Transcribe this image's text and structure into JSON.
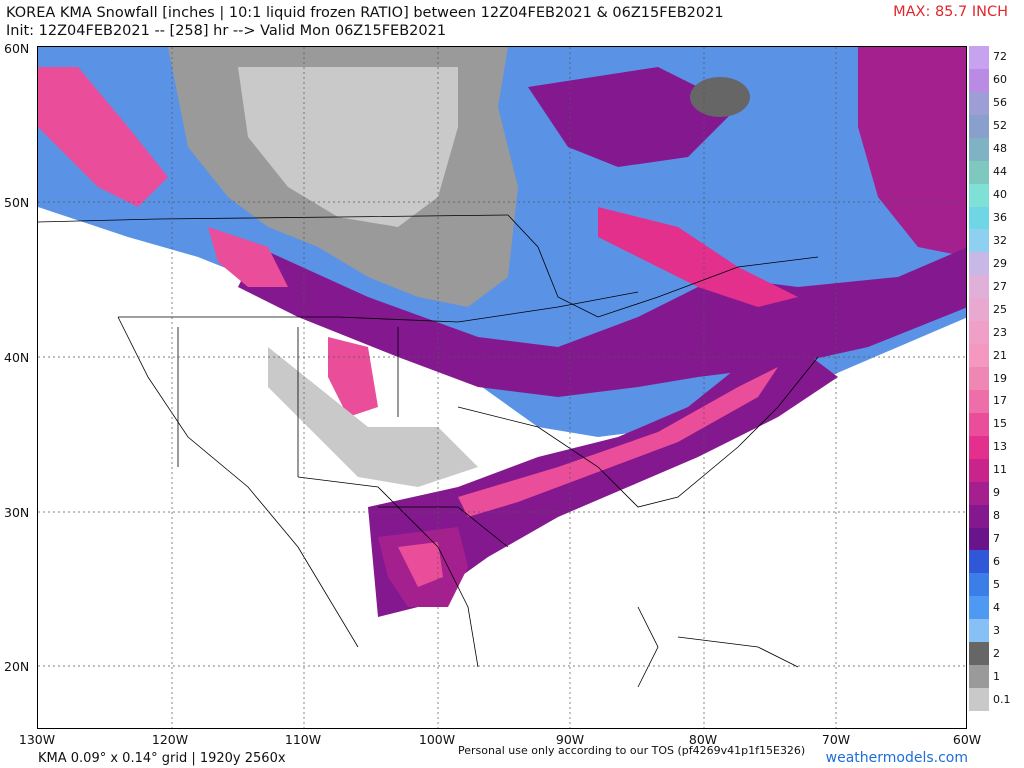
{
  "header": {
    "title": "KOREA KMA Snowfall [inches | 10:1 liquid frozen RATIO] between 12Z04FEB2021 & 06Z15FEB2021",
    "init": "Init: 12Z04FEB2021 -- [258] hr --> Valid Mon 06Z15FEB2021",
    "max_label": "MAX: 85.7 INCH",
    "max_color": "#e0282e"
  },
  "axes": {
    "lat_labels": [
      "60N",
      "50N",
      "40N",
      "30N",
      "20N"
    ],
    "lon_labels": [
      "130W",
      "120W",
      "110W",
      "100W",
      "90W",
      "80W",
      "70W",
      "60W"
    ]
  },
  "colorbar": {
    "labels": [
      "72",
      "60",
      "56",
      "52",
      "48",
      "44",
      "40",
      "36",
      "32",
      "29",
      "27",
      "25",
      "23",
      "21",
      "19",
      "17",
      "15",
      "13",
      "11",
      "9",
      "8",
      "7",
      "6",
      "5",
      "4",
      "3",
      "2",
      "1",
      "0.1"
    ],
    "colors": [
      "#c7a2ee",
      "#b98be4",
      "#9e9ed7",
      "#8aa0cc",
      "#7fb3c4",
      "#7fc8c0",
      "#7fe0d6",
      "#6fd6e6",
      "#8fd0f0",
      "#c8b8e8",
      "#e0b0d8",
      "#e8a8cf",
      "#f0a0c6",
      "#f498c0",
      "#f086b4",
      "#ee6eaa",
      "#ea4e9a",
      "#e2308c",
      "#c8248c",
      "#a4208e",
      "#84188e",
      "#6a148c",
      "#2f57d8",
      "#3b7ee8",
      "#4e9af2",
      "#86c0f6",
      "#666666",
      "#9a9a9a",
      "#c9c9c9"
    ]
  },
  "footer": {
    "grid": "KMA 0.09° x 0.14° grid | 1920y 2560x",
    "tos": "Personal use only according to our TOS (pf4269v41p1f15E326)",
    "site": "weathermodels.com",
    "site_color": "#1e6ed8"
  },
  "map_layers": [
    {
      "name": "no-snow",
      "color": "#ffffff"
    },
    {
      "name": "trace-snow",
      "color": "#c9c9c9"
    },
    {
      "name": "light-snow",
      "color": "#9a9a9a"
    },
    {
      "name": "moderate-snow",
      "color": "#4e9af2"
    },
    {
      "name": "heavy-snow",
      "color": "#84188e"
    },
    {
      "name": "very-heavy-snow",
      "color": "#ea4e9a"
    }
  ]
}
